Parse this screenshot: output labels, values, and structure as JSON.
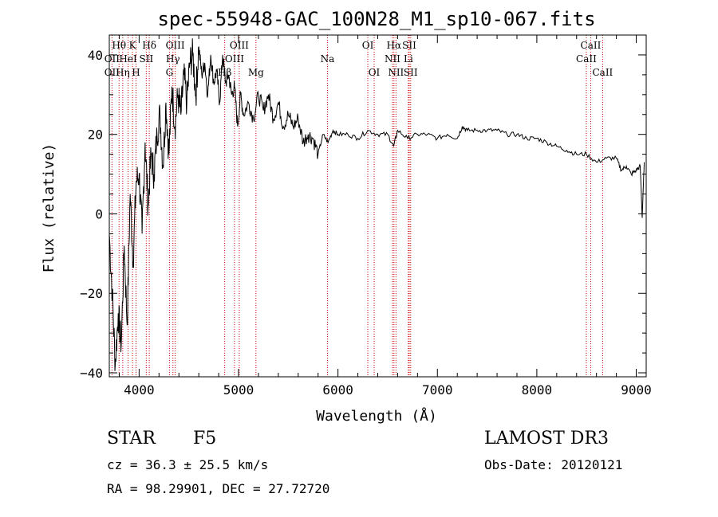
{
  "chart_data": {
    "type": "line",
    "title": "spec-55948-GAC_100N28_M1_sp10-067.fits",
    "xlabel": "Wavelength (Å)",
    "ylabel": "Flux (relative)",
    "xlim": [
      3700,
      9100
    ],
    "ylim": [
      -41,
      45
    ],
    "xticks": [
      4000,
      5000,
      6000,
      7000,
      8000,
      9000
    ],
    "yticks": [
      -40,
      -20,
      0,
      20,
      40
    ],
    "grid": false,
    "line_color": "#000000",
    "marker_color": "#cc0000",
    "series": [
      {
        "x": [
          3700,
          3730,
          3760,
          3790,
          3820,
          3850,
          3880,
          3910,
          3940,
          3970,
          4000,
          4030,
          4060,
          4090,
          4120,
          4150,
          4180,
          4210,
          4240,
          4270,
          4300,
          4330,
          4360,
          4390,
          4420,
          4450,
          4480,
          4510,
          4540,
          4570,
          4600,
          4630,
          4660,
          4690,
          4720,
          4750,
          4780,
          4810,
          4840,
          4870,
          4900,
          4930,
          4960,
          4990,
          5020,
          5050,
          5100,
          5150,
          5200,
          5250,
          5300,
          5350,
          5400,
          5450,
          5500,
          5550,
          5600,
          5650,
          5700,
          5750,
          5800,
          5850,
          5900,
          5950,
          6000,
          6100,
          6200,
          6300,
          6400,
          6500,
          6560,
          6600,
          6700,
          6800,
          6900,
          7000,
          7100,
          7200,
          7250,
          7300,
          7400,
          7500,
          7600,
          7700,
          7800,
          7900,
          8000,
          8100,
          8200,
          8300,
          8400,
          8500,
          8600,
          8700,
          8800,
          8850,
          8900,
          8950,
          9000,
          9040,
          9060,
          9080
        ],
        "values": [
          -5,
          -20,
          -38,
          -25,
          -33,
          -8,
          -28,
          5,
          -12,
          8,
          10,
          -5,
          18,
          2,
          15,
          10,
          20,
          25,
          12,
          28,
          15,
          32,
          22,
          30,
          25,
          35,
          28,
          38,
          40,
          30,
          42,
          35,
          38,
          30,
          40,
          33,
          36,
          28,
          40,
          33,
          35,
          30,
          32,
          22,
          30,
          25,
          28,
          24,
          30,
          26,
          30,
          24,
          28,
          22,
          25,
          22,
          24,
          18,
          20,
          19,
          15,
          20,
          18,
          21,
          20,
          20,
          19,
          21,
          20,
          20,
          17,
          21,
          19,
          20,
          20,
          19,
          20,
          19,
          22,
          21,
          21,
          21,
          21,
          20,
          20,
          19,
          19,
          18,
          17,
          16,
          15,
          15,
          13,
          14,
          14,
          11,
          12,
          10,
          11,
          12,
          -1,
          13
        ]
      }
    ],
    "annotations": [
      {
        "label": "Hθ",
        "x": 3798,
        "row": 0
      },
      {
        "label": "OII",
        "x": 3727,
        "row": 1
      },
      {
        "label": "OII",
        "x": 3727,
        "row": 2
      },
      {
        "label": "K",
        "x": 3934,
        "row": 0
      },
      {
        "label": "HeI",
        "x": 3889,
        "row": 1
      },
      {
        "label": "Hη",
        "x": 3835,
        "row": 2
      },
      {
        "label": "Hδ",
        "x": 4102,
        "row": 0
      },
      {
        "label": "SII",
        "x": 4072,
        "row": 1
      },
      {
        "label": "H",
        "x": 3969,
        "row": 2
      },
      {
        "label": "OIII",
        "x": 4363,
        "row": 0
      },
      {
        "label": "Hγ",
        "x": 4340,
        "row": 1
      },
      {
        "label": "G",
        "x": 4305,
        "row": 2
      },
      {
        "label": "OIII",
        "x": 5007,
        "row": 0
      },
      {
        "label": "OIII",
        "x": 4959,
        "row": 1
      },
      {
        "label": "Hβ",
        "x": 4861,
        "row": 2
      },
      {
        "label": "Mg",
        "x": 5175,
        "row": 2
      },
      {
        "label": "Na",
        "x": 5894,
        "row": 1
      },
      {
        "label": "OI",
        "x": 6300,
        "row": 0
      },
      {
        "label": "OI",
        "x": 6364,
        "row": 2
      },
      {
        "label": "Hα",
        "x": 6563,
        "row": 0
      },
      {
        "label": "NII",
        "x": 6548,
        "row": 1
      },
      {
        "label": "NII",
        "x": 6583,
        "row": 2
      },
      {
        "label": "SII",
        "x": 6717,
        "row": 0
      },
      {
        "label": "Li",
        "x": 6708,
        "row": 1
      },
      {
        "label": "SII",
        "x": 6731,
        "row": 2
      },
      {
        "label": "CaII",
        "x": 8542,
        "row": 0
      },
      {
        "label": "CaII",
        "x": 8498,
        "row": 1
      },
      {
        "label": "CaII",
        "x": 8662,
        "row": 2
      }
    ]
  },
  "info": {
    "class_label": "STAR",
    "subclass": "F5",
    "survey": "LAMOST DR3",
    "cz": "cz = 36.3 ± 25.5 km/s",
    "obs_date": "Obs-Date: 20120121",
    "coords": "RA =  98.29901, DEC =  27.72720"
  }
}
